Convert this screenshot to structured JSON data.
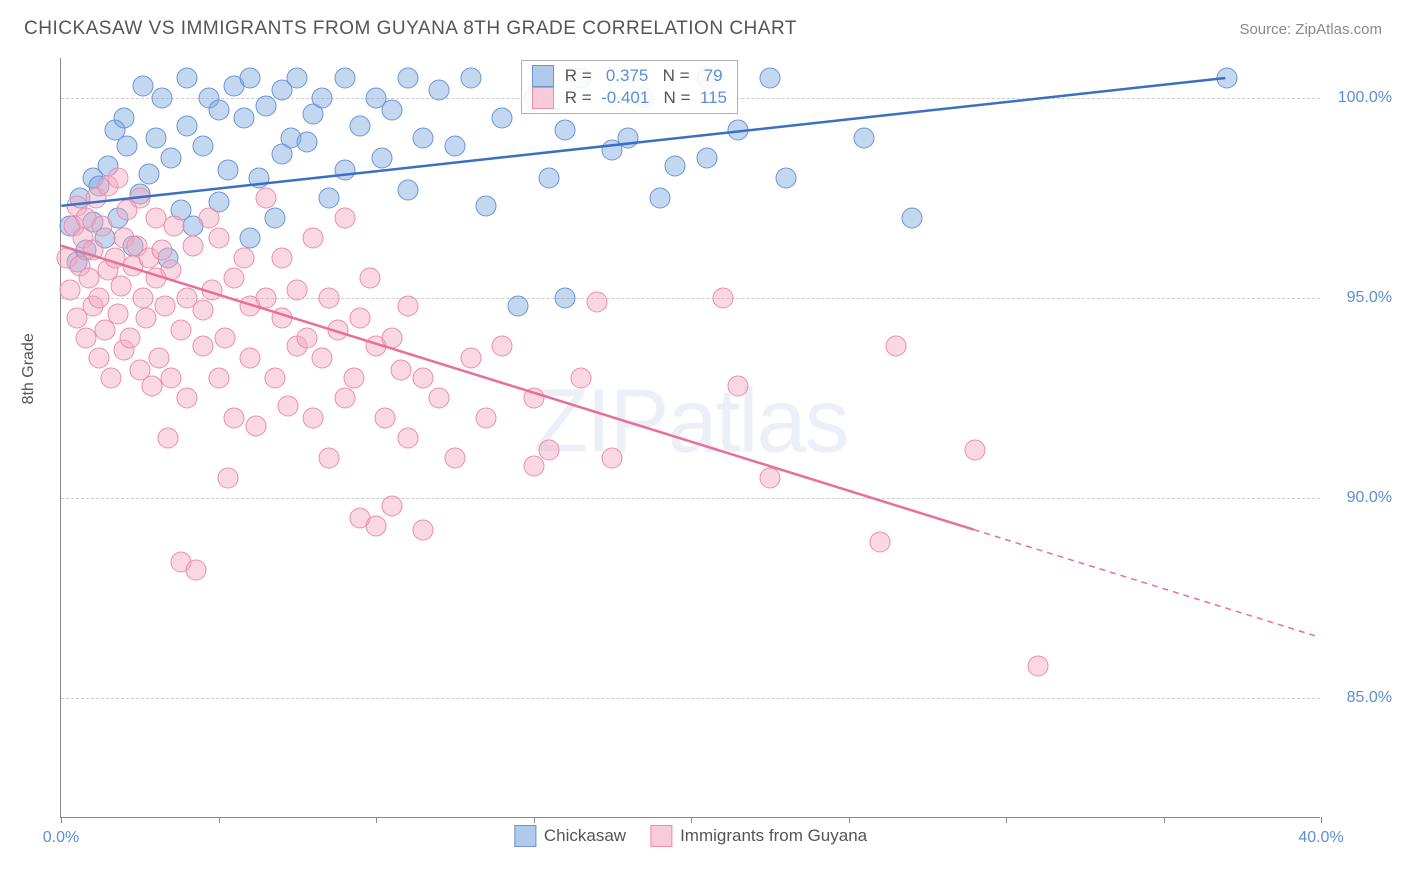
{
  "title": "CHICKASAW VS IMMIGRANTS FROM GUYANA 8TH GRADE CORRELATION CHART",
  "source": "Source: ZipAtlas.com",
  "watermark": "ZIPatlas",
  "ylabel": "8th Grade",
  "chart": {
    "type": "scatter",
    "xlim": [
      0,
      40
    ],
    "ylim": [
      82,
      101
    ],
    "xticks": [
      0,
      5,
      10,
      15,
      20,
      25,
      30,
      35,
      40
    ],
    "xtick_labels": {
      "0": "0.0%",
      "40": "40.0%"
    },
    "yticks": [
      85,
      90,
      95,
      100
    ],
    "ytick_labels": {
      "85": "85.0%",
      "90": "90.0%",
      "95": "95.0%",
      "100": "100.0%"
    },
    "grid_color": "#cccccc",
    "axis_color": "#888888",
    "background_color": "#ffffff",
    "tick_label_color": "#5b8fd6",
    "marker_radius": 10.5,
    "marker_opacity": 0.45,
    "line_width": 2.5,
    "series": [
      {
        "name": "Chickasaw",
        "color": "#7da7e0",
        "fill": "rgba(125,167,224,0.45)",
        "stroke": "#6a96d4",
        "line_color": "#3b6fc4",
        "R": "0.375",
        "N": "79",
        "trend": {
          "x1": 0,
          "y1": 97.3,
          "x2": 37,
          "y2": 100.5,
          "dash_from_x": null
        },
        "points": [
          [
            0.3,
            96.8
          ],
          [
            0.5,
            95.9
          ],
          [
            0.6,
            97.5
          ],
          [
            0.8,
            96.2
          ],
          [
            1.0,
            98.0
          ],
          [
            1.0,
            96.9
          ],
          [
            1.2,
            97.8
          ],
          [
            1.4,
            96.5
          ],
          [
            1.5,
            98.3
          ],
          [
            1.7,
            99.2
          ],
          [
            1.8,
            97.0
          ],
          [
            2.0,
            99.5
          ],
          [
            2.1,
            98.8
          ],
          [
            2.3,
            96.3
          ],
          [
            2.5,
            97.6
          ],
          [
            2.6,
            100.3
          ],
          [
            2.8,
            98.1
          ],
          [
            3.0,
            99.0
          ],
          [
            3.2,
            100.0
          ],
          [
            3.4,
            96.0
          ],
          [
            3.5,
            98.5
          ],
          [
            3.8,
            97.2
          ],
          [
            4.0,
            99.3
          ],
          [
            4.0,
            100.5
          ],
          [
            4.2,
            96.8
          ],
          [
            4.5,
            98.8
          ],
          [
            4.7,
            100.0
          ],
          [
            5.0,
            99.7
          ],
          [
            5.0,
            97.4
          ],
          [
            5.3,
            98.2
          ],
          [
            5.5,
            100.3
          ],
          [
            5.8,
            99.5
          ],
          [
            6.0,
            100.5
          ],
          [
            6.0,
            96.5
          ],
          [
            6.3,
            98.0
          ],
          [
            6.5,
            99.8
          ],
          [
            6.8,
            97.0
          ],
          [
            7.0,
            100.2
          ],
          [
            7.0,
            98.6
          ],
          [
            7.3,
            99.0
          ],
          [
            7.5,
            100.5
          ],
          [
            7.8,
            98.9
          ],
          [
            8.0,
            99.6
          ],
          [
            8.3,
            100.0
          ],
          [
            8.5,
            97.5
          ],
          [
            9.0,
            100.5
          ],
          [
            9.0,
            98.2
          ],
          [
            9.5,
            99.3
          ],
          [
            10.0,
            100.0
          ],
          [
            10.2,
            98.5
          ],
          [
            10.5,
            99.7
          ],
          [
            11.0,
            100.5
          ],
          [
            11.0,
            97.7
          ],
          [
            11.5,
            99.0
          ],
          [
            12.0,
            100.2
          ],
          [
            12.5,
            98.8
          ],
          [
            13.0,
            100.5
          ],
          [
            13.5,
            97.3
          ],
          [
            14.0,
            99.5
          ],
          [
            14.5,
            94.8
          ],
          [
            15.0,
            100.0
          ],
          [
            15.5,
            98.0
          ],
          [
            16.0,
            99.2
          ],
          [
            16.0,
            95.0
          ],
          [
            16.5,
            100.5
          ],
          [
            17.5,
            98.7
          ],
          [
            18.0,
            99.0
          ],
          [
            18.5,
            100.0
          ],
          [
            19.0,
            97.5
          ],
          [
            19.5,
            98.3
          ],
          [
            20.5,
            98.5
          ],
          [
            20.5,
            100.5
          ],
          [
            21.5,
            99.2
          ],
          [
            22.5,
            100.5
          ],
          [
            23.0,
            98.0
          ],
          [
            25.5,
            99.0
          ],
          [
            27.0,
            97.0
          ],
          [
            37.0,
            100.5
          ]
        ]
      },
      {
        "name": "Immigrants from Guyana",
        "color": "#f5a9c0",
        "fill": "rgba(245,169,192,0.45)",
        "stroke": "#ec8daa",
        "line_color": "#e86f98",
        "R": "-0.401",
        "N": "115",
        "trend": {
          "x1": 0,
          "y1": 96.3,
          "x2": 40,
          "y2": 86.5,
          "dash_from_x": 29
        },
        "points": [
          [
            0.2,
            96.0
          ],
          [
            0.3,
            95.2
          ],
          [
            0.4,
            96.8
          ],
          [
            0.5,
            94.5
          ],
          [
            0.5,
            97.3
          ],
          [
            0.6,
            95.8
          ],
          [
            0.7,
            96.5
          ],
          [
            0.8,
            94.0
          ],
          [
            0.8,
            97.0
          ],
          [
            0.9,
            95.5
          ],
          [
            1.0,
            96.2
          ],
          [
            1.0,
            94.8
          ],
          [
            1.1,
            97.5
          ],
          [
            1.2,
            93.5
          ],
          [
            1.2,
            95.0
          ],
          [
            1.3,
            96.8
          ],
          [
            1.4,
            94.2
          ],
          [
            1.5,
            95.7
          ],
          [
            1.5,
            97.8
          ],
          [
            1.6,
            93.0
          ],
          [
            1.7,
            96.0
          ],
          [
            1.8,
            94.6
          ],
          [
            1.8,
            98.0
          ],
          [
            1.9,
            95.3
          ],
          [
            2.0,
            96.5
          ],
          [
            2.0,
            93.7
          ],
          [
            2.1,
            97.2
          ],
          [
            2.2,
            94.0
          ],
          [
            2.3,
            95.8
          ],
          [
            2.4,
            96.3
          ],
          [
            2.5,
            93.2
          ],
          [
            2.5,
            97.5
          ],
          [
            2.6,
            95.0
          ],
          [
            2.7,
            94.5
          ],
          [
            2.8,
            96.0
          ],
          [
            2.9,
            92.8
          ],
          [
            3.0,
            95.5
          ],
          [
            3.0,
            97.0
          ],
          [
            3.1,
            93.5
          ],
          [
            3.2,
            96.2
          ],
          [
            3.3,
            94.8
          ],
          [
            3.4,
            91.5
          ],
          [
            3.5,
            95.7
          ],
          [
            3.5,
            93.0
          ],
          [
            3.6,
            96.8
          ],
          [
            3.8,
            94.2
          ],
          [
            3.8,
            88.4
          ],
          [
            4.0,
            95.0
          ],
          [
            4.0,
            92.5
          ],
          [
            4.2,
            96.3
          ],
          [
            4.3,
            88.2
          ],
          [
            4.5,
            94.7
          ],
          [
            4.5,
            93.8
          ],
          [
            4.7,
            97.0
          ],
          [
            4.8,
            95.2
          ],
          [
            5.0,
            93.0
          ],
          [
            5.0,
            96.5
          ],
          [
            5.2,
            94.0
          ],
          [
            5.3,
            90.5
          ],
          [
            5.5,
            95.5
          ],
          [
            5.5,
            92.0
          ],
          [
            5.8,
            96.0
          ],
          [
            6.0,
            93.5
          ],
          [
            6.0,
            94.8
          ],
          [
            6.2,
            91.8
          ],
          [
            6.5,
            95.0
          ],
          [
            6.5,
            97.5
          ],
          [
            6.8,
            93.0
          ],
          [
            7.0,
            94.5
          ],
          [
            7.0,
            96.0
          ],
          [
            7.2,
            92.3
          ],
          [
            7.5,
            95.2
          ],
          [
            7.5,
            93.8
          ],
          [
            7.8,
            94.0
          ],
          [
            8.0,
            96.5
          ],
          [
            8.0,
            92.0
          ],
          [
            8.3,
            93.5
          ],
          [
            8.5,
            95.0
          ],
          [
            8.5,
            91.0
          ],
          [
            8.8,
            94.2
          ],
          [
            9.0,
            92.5
          ],
          [
            9.0,
            97.0
          ],
          [
            9.3,
            93.0
          ],
          [
            9.5,
            94.5
          ],
          [
            9.5,
            89.5
          ],
          [
            9.8,
            95.5
          ],
          [
            10.0,
            93.8
          ],
          [
            10.0,
            89.3
          ],
          [
            10.3,
            92.0
          ],
          [
            10.5,
            94.0
          ],
          [
            10.5,
            89.8
          ],
          [
            10.8,
            93.2
          ],
          [
            11.0,
            91.5
          ],
          [
            11.0,
            94.8
          ],
          [
            11.5,
            89.2
          ],
          [
            11.5,
            93.0
          ],
          [
            12.0,
            92.5
          ],
          [
            12.5,
            91.0
          ],
          [
            13.0,
            93.5
          ],
          [
            13.5,
            92.0
          ],
          [
            14.0,
            93.8
          ],
          [
            15.0,
            90.8
          ],
          [
            15.0,
            92.5
          ],
          [
            15.5,
            91.2
          ],
          [
            16.5,
            93.0
          ],
          [
            17.0,
            94.9
          ],
          [
            17.5,
            91.0
          ],
          [
            21.0,
            95.0
          ],
          [
            21.5,
            92.8
          ],
          [
            22.5,
            90.5
          ],
          [
            26.0,
            88.9
          ],
          [
            26.5,
            93.8
          ],
          [
            29.0,
            91.2
          ],
          [
            31.0,
            85.8
          ]
        ]
      }
    ]
  },
  "legend_top": {
    "rows": [
      {
        "swatch_fill": "rgba(125,167,224,0.6)",
        "swatch_stroke": "#6a96d4",
        "r_label": "R =",
        "r_val": "0.375",
        "n_label": "N =",
        "n_val": "79",
        "val_color": "#5b8fd6"
      },
      {
        "swatch_fill": "rgba(245,169,192,0.6)",
        "swatch_stroke": "#ec8daa",
        "r_label": "R =",
        "r_val": "-0.401",
        "n_label": "N =",
        "n_val": "115",
        "val_color": "#5b8fd6"
      }
    ]
  },
  "legend_bottom": {
    "items": [
      {
        "swatch_fill": "rgba(125,167,224,0.6)",
        "swatch_stroke": "#6a96d4",
        "label": "Chickasaw"
      },
      {
        "swatch_fill": "rgba(245,169,192,0.6)",
        "swatch_stroke": "#ec8daa",
        "label": "Immigrants from Guyana"
      }
    ]
  }
}
